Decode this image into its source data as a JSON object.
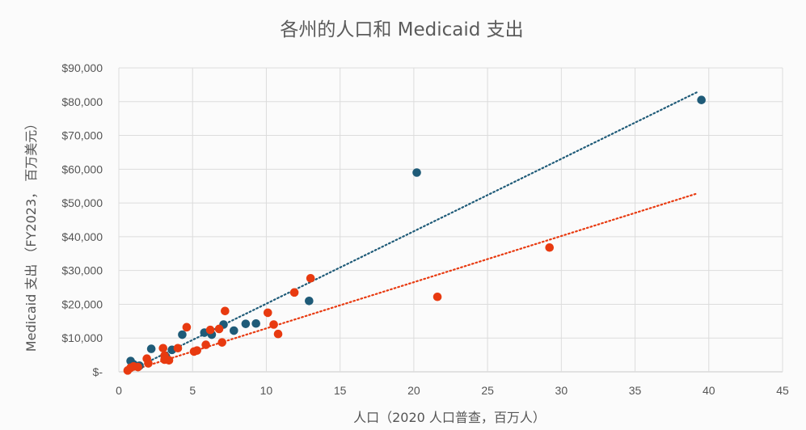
{
  "chart_data": {
    "type": "scatter",
    "title": "各州的人口和 Medicaid 支出",
    "xlabel": "人口（2020 人口普查，百万人）",
    "ylabel": "Medicaid 支出 （FY2023， 百万美元）",
    "xlim": [
      0,
      45
    ],
    "ylim": [
      0,
      90000
    ],
    "x_ticks": [
      0,
      5,
      10,
      15,
      20,
      25,
      30,
      35,
      40,
      45
    ],
    "x_tick_labels": [
      "0",
      "5",
      "10",
      "15",
      "20",
      "25",
      "30",
      "35",
      "40",
      "45"
    ],
    "y_ticks": [
      0,
      10000,
      20000,
      30000,
      40000,
      50000,
      60000,
      70000,
      80000,
      90000
    ],
    "y_tick_labels": [
      "$-",
      "$10,000",
      "$20,000",
      "$30,000",
      "$40,000",
      "$50,000",
      "$60,000",
      "$70,000",
      "$80,000",
      "$90,000"
    ],
    "grid": true,
    "legend": "none",
    "series": [
      {
        "color": "#1f5b78",
        "points": [
          {
            "x": 0.8,
            "y": 3200
          },
          {
            "x": 1.0,
            "y": 2200
          },
          {
            "x": 1.4,
            "y": 1800
          },
          {
            "x": 2.2,
            "y": 6800
          },
          {
            "x": 3.2,
            "y": 4500
          },
          {
            "x": 3.6,
            "y": 6500
          },
          {
            "x": 4.3,
            "y": 11000
          },
          {
            "x": 5.8,
            "y": 11600
          },
          {
            "x": 6.3,
            "y": 11000
          },
          {
            "x": 7.1,
            "y": 14000
          },
          {
            "x": 7.8,
            "y": 12200
          },
          {
            "x": 8.6,
            "y": 14200
          },
          {
            "x": 9.3,
            "y": 14300
          },
          {
            "x": 12.9,
            "y": 21000
          },
          {
            "x": 20.2,
            "y": 59000
          },
          {
            "x": 39.5,
            "y": 80500
          }
        ],
        "trendline": {
          "style": "dotted",
          "from": [
            0.6,
            0
          ],
          "to": [
            39.2,
            82800
          ]
        }
      },
      {
        "color": "#e83a10",
        "points": [
          {
            "x": 0.6,
            "y": 400
          },
          {
            "x": 0.8,
            "y": 1200
          },
          {
            "x": 1.0,
            "y": 1600
          },
          {
            "x": 1.3,
            "y": 1400
          },
          {
            "x": 1.9,
            "y": 3900
          },
          {
            "x": 2.0,
            "y": 2500
          },
          {
            "x": 3.0,
            "y": 7000
          },
          {
            "x": 3.1,
            "y": 4800
          },
          {
            "x": 3.1,
            "y": 3600
          },
          {
            "x": 3.4,
            "y": 3400
          },
          {
            "x": 4.0,
            "y": 7000
          },
          {
            "x": 4.6,
            "y": 13200
          },
          {
            "x": 5.1,
            "y": 6000
          },
          {
            "x": 5.3,
            "y": 6300
          },
          {
            "x": 5.9,
            "y": 8000
          },
          {
            "x": 6.2,
            "y": 12400
          },
          {
            "x": 6.8,
            "y": 12700
          },
          {
            "x": 7.0,
            "y": 8700
          },
          {
            "x": 7.2,
            "y": 18000
          },
          {
            "x": 10.1,
            "y": 17500
          },
          {
            "x": 10.5,
            "y": 14000
          },
          {
            "x": 10.8,
            "y": 11200
          },
          {
            "x": 11.9,
            "y": 23500
          },
          {
            "x": 13.0,
            "y": 27700
          },
          {
            "x": 21.6,
            "y": 22200
          },
          {
            "x": 29.2,
            "y": 36800
          }
        ],
        "trendline": {
          "style": "dotted",
          "from": [
            0.6,
            0
          ],
          "to": [
            39.2,
            52800
          ]
        }
      }
    ]
  }
}
